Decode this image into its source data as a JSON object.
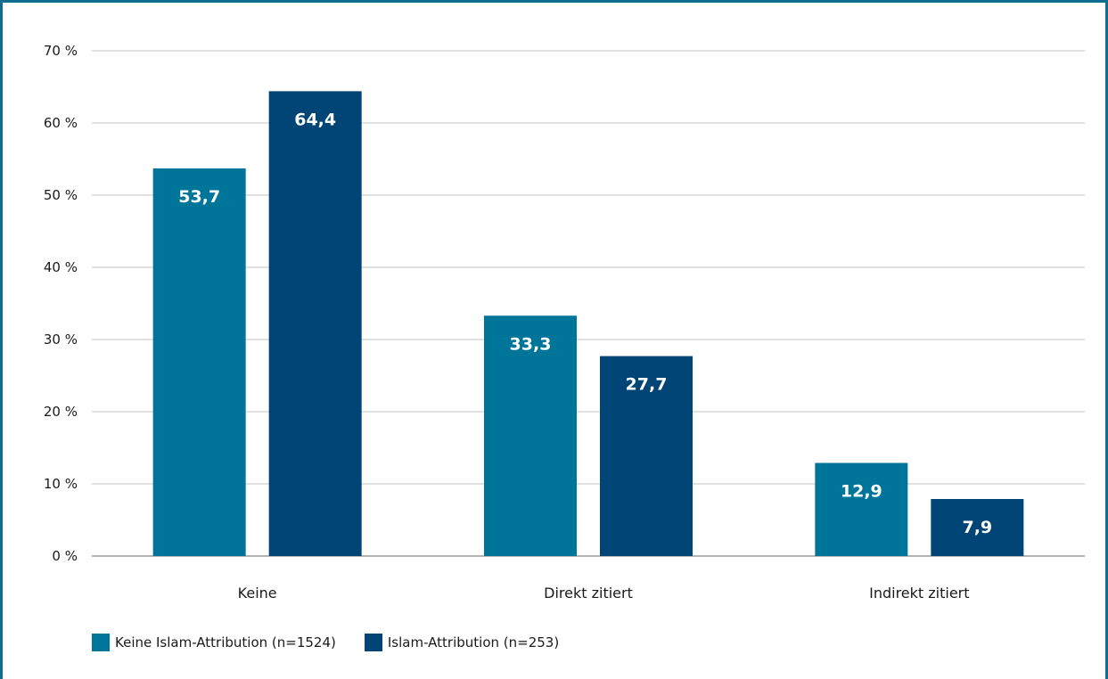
{
  "colors": {
    "frame": "#0f6e8f",
    "grid": "#cfcfcf",
    "axis": "#9a9a9a"
  },
  "chart_data": {
    "type": "bar",
    "categories": [
      "Keine",
      "Direkt zitiert",
      "Indirekt zitiert"
    ],
    "series": [
      {
        "name": "Keine Islam-Attribution (n=1524)",
        "color": "#00759a",
        "values": [
          53.7,
          33.3,
          12.9
        ],
        "labels": [
          "53,7",
          "33,3",
          "12,9"
        ]
      },
      {
        "name": "Islam-Attribution (n=253)",
        "color": "#004575",
        "values": [
          64.4,
          27.7,
          7.9
        ],
        "labels": [
          "64,4",
          "27,7",
          "7,9"
        ]
      }
    ],
    "yticks": [
      0,
      10,
      20,
      30,
      40,
      50,
      60,
      70
    ],
    "ytick_labels": [
      "0 %",
      "10 %",
      "20 %",
      "30 %",
      "40 %",
      "50 %",
      "60 %",
      "70 %"
    ],
    "ylim": [
      0,
      70
    ],
    "grid": true,
    "legend_position": "bottom-left",
    "title": "",
    "xlabel": "",
    "ylabel": ""
  }
}
